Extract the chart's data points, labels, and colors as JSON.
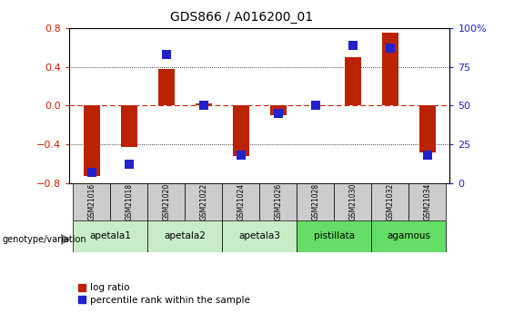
{
  "title": "GDS866 / A016200_01",
  "samples": [
    "GSM21016",
    "GSM21018",
    "GSM21020",
    "GSM21022",
    "GSM21024",
    "GSM21026",
    "GSM21028",
    "GSM21030",
    "GSM21032",
    "GSM21034"
  ],
  "log_ratio": [
    -0.73,
    -0.43,
    0.38,
    0.02,
    -0.52,
    -0.1,
    0.0,
    0.5,
    0.75,
    -0.48
  ],
  "percentile_rank": [
    7,
    12,
    83,
    50,
    18,
    45,
    50,
    89,
    87,
    18
  ],
  "ylim_left": [
    -0.8,
    0.8
  ],
  "ylim_right": [
    0,
    100
  ],
  "yticks_left": [
    -0.8,
    -0.4,
    0.0,
    0.4,
    0.8
  ],
  "yticks_right": [
    0,
    25,
    50,
    75,
    100
  ],
  "groups": [
    {
      "label": "apetala1",
      "indices": [
        0,
        1
      ],
      "color": "#c8ecc8"
    },
    {
      "label": "apetala2",
      "indices": [
        2,
        3
      ],
      "color": "#c8ecc8"
    },
    {
      "label": "apetala3",
      "indices": [
        4,
        5
      ],
      "color": "#c8ecc8"
    },
    {
      "label": "pistillata",
      "indices": [
        6,
        7
      ],
      "color": "#66dd66"
    },
    {
      "label": "agamous",
      "indices": [
        8,
        9
      ],
      "color": "#66dd66"
    }
  ],
  "bar_color_red": "#bb2200",
  "bar_color_blue": "#2222cc",
  "background_color": "#ffffff",
  "plot_bg_color": "#ffffff",
  "left_tick_color": "#cc2200",
  "right_tick_color": "#2222cc",
  "grid_color": "#000000",
  "zero_line_color": "#cc2200",
  "sample_box_color": "#cccccc",
  "legend_items": [
    "log ratio",
    "percentile rank within the sample"
  ],
  "bar_width": 0.45,
  "blue_marker_size": 60
}
